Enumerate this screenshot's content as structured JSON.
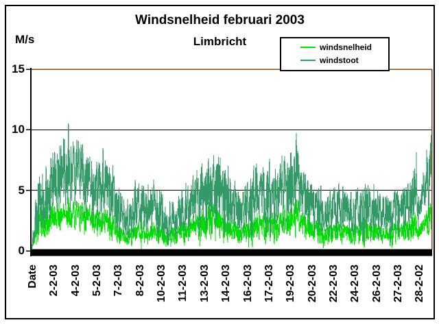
{
  "chart_data": {
    "type": "line",
    "title": "Windsnelheid februari 2003",
    "subtitle": "Limbricht",
    "ylabel": "M/s",
    "ylim": [
      0,
      15
    ],
    "yticks": [
      15,
      10,
      5,
      0
    ],
    "grid": "horizontal gridlines at 5 and 10, heavy black x-axis bar at 0, brown plot border top/right",
    "legend_position": "top-right",
    "categories": [
      "Date",
      "2-2-03",
      "4-2-03",
      "5-2-03",
      "7-2-03",
      "8-2-03",
      "10-2-03",
      "11-2-03",
      "13-2-03",
      "14-2-03",
      "16-2-03",
      "17-2-03",
      "19-2-03",
      "20-2-03",
      "22-2-03",
      "24-2-03",
      "26-2-03",
      "27-2-03",
      "28-2-02"
    ],
    "x_axis_note": "about 4000 ten-minute samples across 28 days of February 2003; series envelopes below are per-day estimated min/max in m/s",
    "series": [
      {
        "name": "windsnelheid",
        "color": "#00e000",
        "daily_max": [
          4.2,
          4.0,
          4.4,
          4.1,
          3.8,
          3.4,
          1.8,
          2.6,
          2.4,
          2.0,
          2.4,
          3.0,
          4.1,
          3.3,
          2.4,
          3.0,
          3.4,
          3.6,
          4.8,
          2.8,
          2.2,
          2.6,
          2.3,
          2.7,
          2.2,
          2.5,
          3.0,
          5.0
        ],
        "daily_min": [
          0.0,
          1.2,
          1.5,
          1.3,
          1.0,
          0.3,
          0.2,
          0.1,
          0.1,
          0.2,
          0.2,
          0.4,
          0.3,
          0.2,
          0.1,
          0.3,
          0.3,
          0.5,
          0.8,
          0.3,
          0.1,
          0.2,
          0.1,
          0.2,
          0.1,
          0.1,
          0.4,
          0.8
        ]
      },
      {
        "name": "windstoot",
        "color": "#339966",
        "daily_max": [
          6.5,
          8.2,
          10.7,
          9.3,
          8.6,
          8.4,
          4.5,
          6.3,
          6.0,
          4.5,
          5.2,
          6.6,
          8.0,
          7.6,
          5.4,
          7.0,
          7.8,
          7.9,
          10.3,
          6.0,
          5.2,
          5.8,
          5.4,
          6.0,
          5.0,
          5.6,
          6.4,
          12.0
        ],
        "daily_min": [
          0.0,
          2.0,
          2.5,
          2.5,
          1.5,
          0.5,
          0.3,
          0.2,
          0.2,
          0.4,
          0.3,
          0.8,
          0.5,
          0.3,
          0.2,
          0.5,
          0.5,
          1.0,
          1.5,
          0.5,
          0.2,
          0.3,
          0.2,
          0.3,
          0.2,
          0.2,
          0.8,
          1.5
        ]
      }
    ],
    "colors": {
      "plot_border": "#8b4a21",
      "axis": "#000000",
      "gridline": "#000000",
      "text": "#000000",
      "background": "#ffffff"
    }
  }
}
